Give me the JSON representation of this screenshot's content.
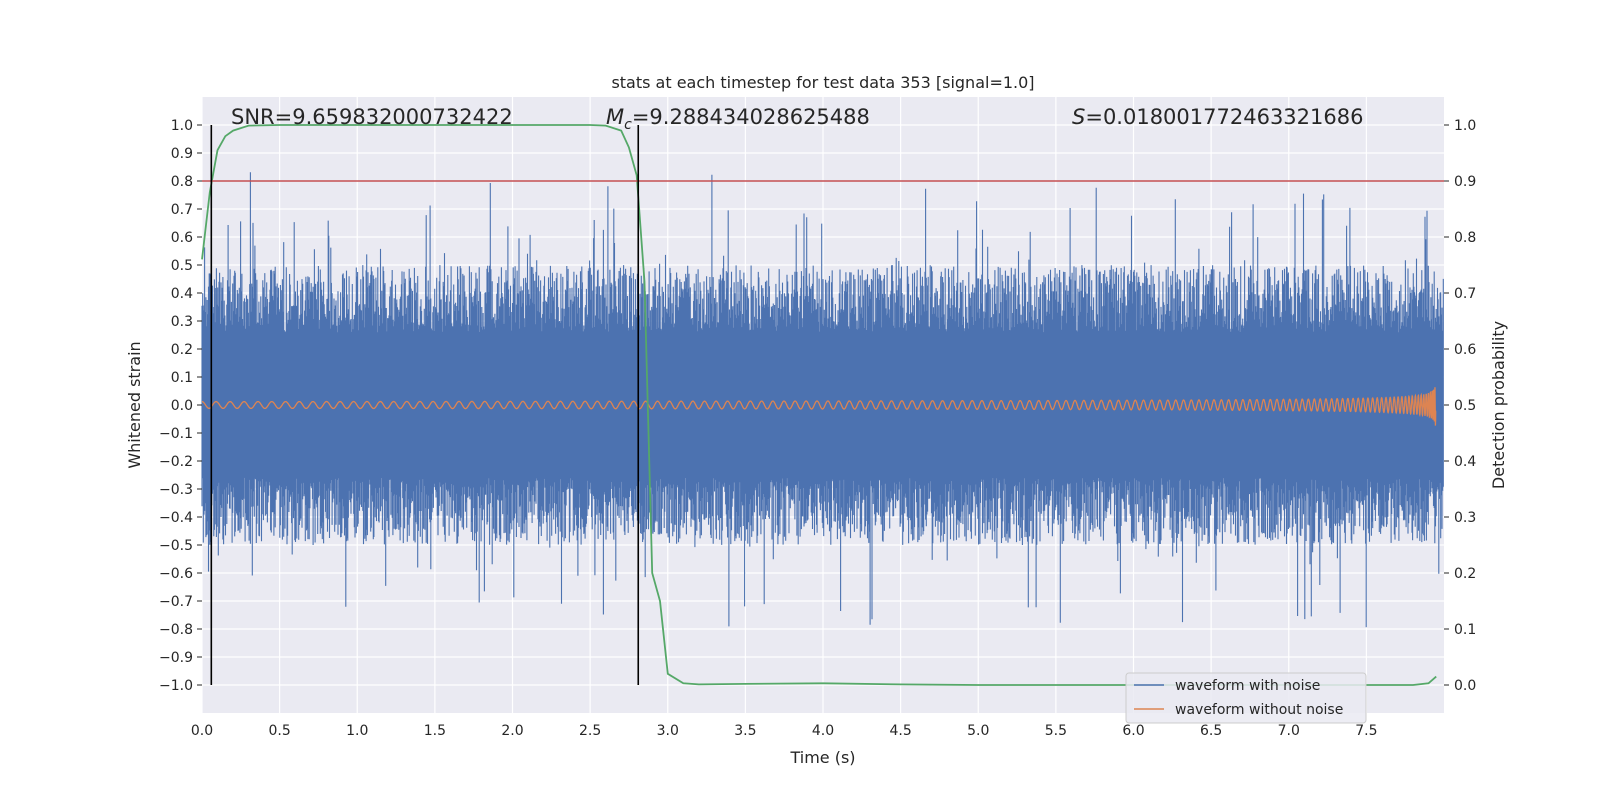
{
  "chart_data": {
    "type": "line",
    "title": "stats at each timestep for test data 353 [signal=1.0]",
    "xlabel": "Time (s)",
    "ylabel": "Whitened strain",
    "y2label": "Detection probability",
    "xlim": [
      0.0,
      8.0
    ],
    "ylim": [
      -1.1,
      1.1
    ],
    "y2lim": [
      -0.05,
      1.05
    ],
    "xticks": [
      "0.0",
      "0.5",
      "1.0",
      "1.5",
      "2.0",
      "2.5",
      "3.0",
      "3.5",
      "4.0",
      "4.5",
      "5.0",
      "5.5",
      "6.0",
      "6.5",
      "7.0",
      "7.5"
    ],
    "yticks": [
      "1.0",
      "0.9",
      "0.8",
      "0.7",
      "0.6",
      "0.5",
      "0.4",
      "0.3",
      "0.2",
      "0.1",
      "0.0",
      "-0.1",
      "-0.2",
      "-0.3",
      "-0.4",
      "-0.5",
      "-0.6",
      "-0.7",
      "-0.8",
      "-0.9",
      "-1.0"
    ],
    "y2ticks": [
      "1.0",
      "0.9",
      "0.8",
      "0.7",
      "0.6",
      "0.5",
      "0.4",
      "0.3",
      "0.2",
      "0.1",
      "0.0"
    ],
    "grid": true,
    "legend_position": "lower-right",
    "annotations": {
      "snr": "SNR=9.659832000732422",
      "mc_symbol": "M",
      "mc_sub": "c",
      "mc_value": "=9.288434028625488",
      "s_symbol": "S",
      "s_value": "=0.018001772463321686"
    },
    "threshold": {
      "y2": 0.9,
      "color": "#c44e52"
    },
    "vertical_lines": [
      0.06,
      2.81
    ],
    "series": [
      {
        "name": "waveform with noise",
        "color": "#4c72b0",
        "axis": "left",
        "style": "noise",
        "envelope_mean": 0.38,
        "envelope_spread": 0.12,
        "peak_max": 1.0,
        "peak_min": -1.0
      },
      {
        "name": "waveform without noise",
        "color": "#dd8452",
        "axis": "left",
        "style": "chirp",
        "amplitude_start": 0.012,
        "amplitude_peak": 0.4,
        "merger_time": 7.95
      },
      {
        "axis": "right",
        "color": "#55a868",
        "style": "line",
        "x": [
          0.0,
          0.05,
          0.1,
          0.15,
          0.2,
          0.3,
          0.5,
          1.0,
          1.5,
          2.0,
          2.5,
          2.6,
          2.7,
          2.75,
          2.8,
          2.85,
          2.9,
          2.95,
          3.0,
          3.1,
          3.2,
          3.5,
          4.0,
          4.5,
          5.0,
          5.5,
          6.0,
          6.5,
          7.0,
          7.5,
          7.8,
          7.9,
          7.95
        ],
        "y": [
          0.76,
          0.88,
          0.955,
          0.98,
          0.99,
          0.999,
          1.0,
          1.0,
          1.0,
          1.0,
          1.0,
          0.999,
          0.99,
          0.96,
          0.91,
          0.72,
          0.2,
          0.15,
          0.02,
          0.003,
          0.001,
          0.002,
          0.003,
          0.001,
          0.0,
          0.0,
          0.0,
          0.0,
          0.0,
          0.0,
          0.0,
          0.003,
          0.015
        ]
      }
    ]
  }
}
